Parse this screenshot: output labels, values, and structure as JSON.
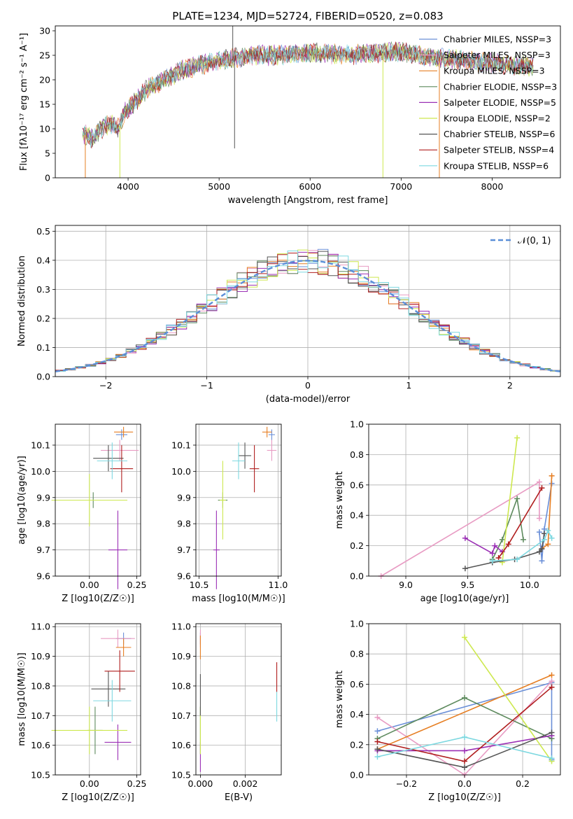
{
  "chart_data": [
    {
      "id": "spectrum",
      "type": "line",
      "title": "PLATE=1234, MJD=52724, FIBERID=0520, z=0.083",
      "xlabel": "wavelength [Angstrom, rest frame]",
      "ylabel": "Flux [fλ10⁻¹⁷ erg cm⁻² s⁻¹ A⁻¹]",
      "xlim": [
        3200,
        8750
      ],
      "ylim": [
        0,
        31
      ],
      "xticks": [
        4000,
        5000,
        6000,
        7000,
        8000
      ],
      "yticks": [
        0,
        5,
        10,
        15,
        20,
        25,
        30
      ],
      "grid": false,
      "legend_position": "right",
      "continuum": [
        [
          3500,
          9
        ],
        [
          3600,
          8
        ],
        [
          3700,
          10
        ],
        [
          3800,
          11
        ],
        [
          3900,
          10
        ],
        [
          3950,
          13
        ],
        [
          4050,
          15
        ],
        [
          4200,
          18
        ],
        [
          4400,
          20
        ],
        [
          4600,
          22
        ],
        [
          4800,
          23
        ],
        [
          5000,
          24
        ],
        [
          5200,
          24.5
        ],
        [
          5400,
          25
        ],
        [
          5600,
          25
        ],
        [
          5800,
          25.3
        ],
        [
          6000,
          25.5
        ],
        [
          6200,
          25.3
        ],
        [
          6400,
          25
        ],
        [
          6600,
          25.3
        ],
        [
          6800,
          25.5
        ],
        [
          7000,
          25.8
        ],
        [
          7200,
          25
        ],
        [
          7400,
          24.5
        ],
        [
          7600,
          24.2
        ],
        [
          7800,
          23.8
        ],
        [
          8000,
          23.5
        ],
        [
          8200,
          23
        ],
        [
          8400,
          22.8
        ]
      ],
      "series": [
        {
          "name": "Chabrier MILES, NSSP=3",
          "color": "#6a8fd8"
        },
        {
          "name": "Salpeter MILES, NSSP=3",
          "color": "#e89bc3"
        },
        {
          "name": "Kroupa MILES, NSSP=3",
          "color": "#e67e22"
        },
        {
          "name": "Chabrier ELODIE, NSSP=3",
          "color": "#5d8a5d"
        },
        {
          "name": "Salpeter ELODIE, NSSP=5",
          "color": "#9b30b5"
        },
        {
          "name": "Kroupa ELODIE, NSSP=2",
          "color": "#cde84e"
        },
        {
          "name": "Chabrier STELIB, NSSP=6",
          "color": "#555555"
        },
        {
          "name": "Salpeter STELIB, NSSP=4",
          "color": "#b01e1e"
        },
        {
          "name": "Kroupa STELIB, NSSP=6",
          "color": "#7dd8e0"
        }
      ]
    },
    {
      "id": "residuals",
      "type": "line",
      "xlabel": "(data-model)/error",
      "ylabel": "Normed distribution",
      "xlim": [
        -2.5,
        2.5
      ],
      "ylim": [
        0,
        0.52
      ],
      "xticks": [
        -2,
        -1,
        0,
        1,
        2
      ],
      "yticks": [
        0.0,
        0.1,
        0.2,
        0.3,
        0.4,
        0.5
      ],
      "grid": true,
      "legend_position": "top-right",
      "reference_label": "𝒩(0, 1)",
      "reference_color": "#5b8fd8"
    },
    {
      "id": "age-vs-z",
      "type": "scatter",
      "xlabel": "Z [log10(Z/Z☉)]",
      "ylabel": "age [log10(age/yr)]",
      "xlim": [
        -0.18,
        0.27
      ],
      "ylim": [
        9.6,
        10.18
      ],
      "xticks": [
        0.0,
        0.25
      ],
      "yticks": [
        9.6,
        9.7,
        9.8,
        9.9,
        10.0,
        10.1
      ],
      "grid": true,
      "points": [
        {
          "x": 0.17,
          "y": 10.14,
          "xerr": 0.03,
          "yerr": 0.02,
          "color": "#6a8fd8"
        },
        {
          "x": 0.16,
          "y": 10.08,
          "xerr": 0.1,
          "yerr": 0.04,
          "color": "#e89bc3"
        },
        {
          "x": 0.18,
          "y": 10.15,
          "xerr": 0.05,
          "yerr": 0.02,
          "color": "#e67e22"
        },
        {
          "x": 0.02,
          "y": 9.89,
          "xerr": 0.07,
          "yerr": 0.03,
          "color": "#5d8a5d"
        },
        {
          "x": 0.15,
          "y": 9.7,
          "xerr": 0.05,
          "yerr": 0.15,
          "color": "#9b30b5"
        },
        {
          "x": 0.0,
          "y": 9.89,
          "xerr": 0.2,
          "yerr": 0.1,
          "color": "#cde84e"
        },
        {
          "x": 0.1,
          "y": 10.05,
          "xerr": 0.08,
          "yerr": 0.05,
          "color": "#555555"
        },
        {
          "x": 0.17,
          "y": 10.01,
          "xerr": 0.06,
          "yerr": 0.09,
          "color": "#b01e1e"
        },
        {
          "x": 0.12,
          "y": 10.04,
          "xerr": 0.08,
          "yerr": 0.07,
          "color": "#7dd8e0"
        }
      ]
    },
    {
      "id": "age-vs-mass",
      "type": "scatter",
      "xlabel": "mass [log10(M/M☉)]",
      "ylabel": "",
      "xlim": [
        10.48,
        11.02
      ],
      "ylim": [
        9.6,
        10.18
      ],
      "xticks": [
        10.5,
        11.0
      ],
      "yticks": [
        9.6,
        9.7,
        9.8,
        9.9,
        10.0,
        10.1
      ],
      "grid": true,
      "points": [
        {
          "x": 10.96,
          "y": 10.14,
          "xerr": 0.02,
          "yerr": 0.02,
          "color": "#6a8fd8"
        },
        {
          "x": 10.96,
          "y": 10.08,
          "xerr": 0.03,
          "yerr": 0.04,
          "color": "#e89bc3"
        },
        {
          "x": 10.93,
          "y": 10.15,
          "xerr": 0.03,
          "yerr": 0.02,
          "color": "#e67e22"
        },
        {
          "x": 10.65,
          "y": 9.89,
          "xerr": 0.03,
          "yerr": 0.03,
          "color": "#5d8a5d"
        },
        {
          "x": 10.61,
          "y": 9.7,
          "xerr": 0.02,
          "yerr": 0.15,
          "color": "#9b30b5"
        },
        {
          "x": 10.65,
          "y": 9.89,
          "xerr": 0.02,
          "yerr": 0.15,
          "color": "#cde84e"
        },
        {
          "x": 10.79,
          "y": 10.06,
          "xerr": 0.04,
          "yerr": 0.05,
          "color": "#555555"
        },
        {
          "x": 10.85,
          "y": 10.01,
          "xerr": 0.03,
          "yerr": 0.09,
          "color": "#b01e1e"
        },
        {
          "x": 10.75,
          "y": 10.04,
          "xerr": 0.04,
          "yerr": 0.07,
          "color": "#7dd8e0"
        }
      ]
    },
    {
      "id": "weight-vs-age",
      "type": "line",
      "xlabel": "age [log10(age/yr)]",
      "ylabel": "mass weight",
      "xlim": [
        8.7,
        10.25
      ],
      "ylim": [
        0,
        1.0
      ],
      "xticks": [
        9.0,
        9.5,
        10.0
      ],
      "yticks": [
        0.0,
        0.2,
        0.4,
        0.6,
        0.8,
        1.0
      ],
      "grid": true,
      "series": [
        {
          "color": "#6a8fd8",
          "x": [
            10.08,
            10.1,
            10.12,
            10.18
          ],
          "y": [
            0.29,
            0.1,
            0.31,
            0.61
          ]
        },
        {
          "color": "#e89bc3",
          "x": [
            8.8,
            10.08,
            10.08
          ],
          "y": [
            0.0,
            0.62,
            0.38
          ]
        },
        {
          "color": "#e67e22",
          "x": [
            10.1,
            10.15,
            10.18
          ],
          "y": [
            0.18,
            0.21,
            0.66
          ]
        },
        {
          "color": "#5d8a5d",
          "x": [
            9.7,
            9.78,
            9.9,
            9.95
          ],
          "y": [
            0.11,
            0.24,
            0.51,
            0.24
          ]
        },
        {
          "color": "#9b30b5",
          "x": [
            9.48,
            9.7,
            9.72,
            9.78
          ],
          "y": [
            0.25,
            0.15,
            0.2,
            0.16
          ]
        },
        {
          "color": "#cde84e",
          "x": [
            9.78,
            9.9
          ],
          "y": [
            0.09,
            0.91
          ]
        },
        {
          "color": "#555555",
          "x": [
            9.48,
            9.7,
            9.88,
            10.08,
            10.1,
            10.12
          ],
          "y": [
            0.05,
            0.09,
            0.11,
            0.16,
            0.18,
            0.28
          ]
        },
        {
          "color": "#b01e1e",
          "x": [
            9.75,
            9.83,
            10.1
          ],
          "y": [
            0.12,
            0.21,
            0.58
          ]
        },
        {
          "color": "#7dd8e0",
          "x": [
            9.7,
            9.9,
            10.12,
            10.15,
            10.18
          ],
          "y": [
            0.1,
            0.11,
            0.24,
            0.3,
            0.25
          ]
        }
      ]
    },
    {
      "id": "mass-vs-z",
      "type": "scatter",
      "xlabel": "Z [log10(Z/Z☉)]",
      "ylabel": "mass [log10(M/M☉)]",
      "xlim": [
        -0.18,
        0.27
      ],
      "ylim": [
        10.5,
        11.01
      ],
      "xticks": [
        0.0,
        0.25
      ],
      "yticks": [
        10.5,
        10.6,
        10.7,
        10.8,
        10.9,
        11.0
      ],
      "grid": true,
      "points": [
        {
          "x": 0.18,
          "y": 10.96,
          "xerr": 0.04,
          "yerr": 0.02,
          "color": "#6a8fd8"
        },
        {
          "x": 0.15,
          "y": 10.96,
          "xerr": 0.09,
          "yerr": 0.03,
          "color": "#e89bc3"
        },
        {
          "x": 0.18,
          "y": 10.93,
          "xerr": 0.04,
          "yerr": 0.03,
          "color": "#e67e22"
        },
        {
          "x": 0.03,
          "y": 10.65,
          "xerr": 0.04,
          "yerr": 0.08,
          "color": "#5d8a5d"
        },
        {
          "x": 0.15,
          "y": 10.61,
          "xerr": 0.07,
          "yerr": 0.06,
          "color": "#9b30b5"
        },
        {
          "x": 0.0,
          "y": 10.65,
          "xerr": 0.2,
          "yerr": 0.08,
          "color": "#cde84e"
        },
        {
          "x": 0.1,
          "y": 10.79,
          "xerr": 0.09,
          "yerr": 0.06,
          "color": "#555555"
        },
        {
          "x": 0.16,
          "y": 10.85,
          "xerr": 0.08,
          "yerr": 0.07,
          "color": "#b01e1e"
        },
        {
          "x": 0.12,
          "y": 10.75,
          "xerr": 0.1,
          "yerr": 0.07,
          "color": "#7dd8e0"
        }
      ]
    },
    {
      "id": "mass-vs-ebv",
      "type": "scatter",
      "xlabel": "E(B-V)",
      "ylabel": "",
      "xlim": [
        -0.0002,
        0.0036
      ],
      "ylim": [
        10.5,
        11.01
      ],
      "xticks": [
        0.0,
        0.002
      ],
      "yticks": [
        10.5,
        10.6,
        10.7,
        10.8,
        10.9,
        11.0
      ],
      "grid": true,
      "points": [
        {
          "x": 0.0,
          "y": 10.96,
          "xerr": 0,
          "yerr": 0.02,
          "color": "#6a8fd8"
        },
        {
          "x": 0.0,
          "y": 10.96,
          "xerr": 0,
          "yerr": 0.03,
          "color": "#e89bc3"
        },
        {
          "x": 0.0,
          "y": 10.93,
          "xerr": 0,
          "yerr": 0.04,
          "color": "#e67e22"
        },
        {
          "x": 0.0,
          "y": 10.65,
          "xerr": 0,
          "yerr": 0.08,
          "color": "#5d8a5d"
        },
        {
          "x": 0.0,
          "y": 10.56,
          "xerr": 0,
          "yerr": 0.05,
          "color": "#9b30b5"
        },
        {
          "x": 0.0,
          "y": 10.65,
          "xerr": 0,
          "yerr": 0.08,
          "color": "#cde84e"
        },
        {
          "x": 0.0,
          "y": 10.77,
          "xerr": 0,
          "yerr": 0.07,
          "color": "#555555"
        },
        {
          "x": 0.0034,
          "y": 10.83,
          "xerr": 0,
          "yerr": 0.05,
          "color": "#b01e1e"
        },
        {
          "x": 0.0034,
          "y": 10.73,
          "xerr": 0,
          "yerr": 0.05,
          "color": "#7dd8e0"
        }
      ]
    },
    {
      "id": "weight-vs-z",
      "type": "line",
      "xlabel": "Z [log10(Z/Z☉)]",
      "ylabel": "mass weight",
      "xlim": [
        -0.33,
        0.33
      ],
      "ylim": [
        0,
        1.0
      ],
      "xticks": [
        -0.2,
        0.0,
        0.2
      ],
      "yticks": [
        0.0,
        0.2,
        0.4,
        0.6,
        0.8,
        1.0
      ],
      "grid": true,
      "series": [
        {
          "color": "#6a8fd8",
          "x": [
            -0.3,
            0.3,
            0.3
          ],
          "y": [
            0.29,
            0.61,
            0.1
          ]
        },
        {
          "color": "#e89bc3",
          "x": [
            -0.3,
            0.0,
            0.3
          ],
          "y": [
            0.38,
            0.0,
            0.62
          ]
        },
        {
          "color": "#e67e22",
          "x": [
            -0.3,
            0.3
          ],
          "y": [
            0.17,
            0.66
          ]
        },
        {
          "color": "#5d8a5d",
          "x": [
            -0.3,
            0.0,
            0.3
          ],
          "y": [
            0.24,
            0.51,
            0.24
          ]
        },
        {
          "color": "#9b30b5",
          "x": [
            -0.3,
            0.0,
            0.3
          ],
          "y": [
            0.16,
            0.16,
            0.26
          ]
        },
        {
          "color": "#cde84e",
          "x": [
            0.0,
            0.3
          ],
          "y": [
            0.91,
            0.09
          ]
        },
        {
          "color": "#555555",
          "x": [
            -0.3,
            0.0,
            0.3
          ],
          "y": [
            0.17,
            0.05,
            0.28
          ]
        },
        {
          "color": "#b01e1e",
          "x": [
            -0.3,
            0.0,
            0.3
          ],
          "y": [
            0.22,
            0.09,
            0.58
          ]
        },
        {
          "color": "#7dd8e0",
          "x": [
            -0.3,
            0.0,
            0.3
          ],
          "y": [
            0.12,
            0.25,
            0.11
          ]
        }
      ]
    }
  ]
}
